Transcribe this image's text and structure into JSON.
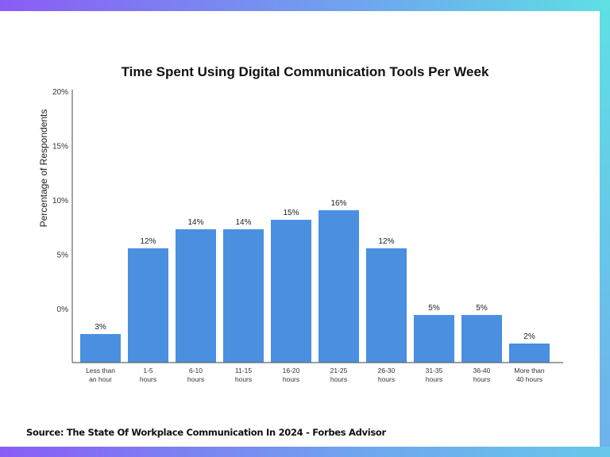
{
  "frame_colors": {
    "gradient_start": "#8a5cf6",
    "gradient_end": "#5ee0e4"
  },
  "source": "Source: The State Of Workplace Communication In 2024 - Forbes Advisor",
  "chart_data": {
    "type": "bar",
    "title": "Time Spent Using Digital Communication Tools Per Week",
    "ylabel": "Percentage of Respondents",
    "xlabel": "",
    "y_tick_labels": [
      "20%",
      "15%",
      "10%",
      "5%",
      "0%"
    ],
    "categories": [
      [
        "Less than",
        "an hour"
      ],
      [
        "1-5",
        "hours"
      ],
      [
        "6-10",
        "hours"
      ],
      [
        "11-15",
        "hours"
      ],
      [
        "16-20",
        "hours"
      ],
      [
        "21-25",
        "hours"
      ],
      [
        "26-30",
        "hours"
      ],
      [
        "31-35",
        "hours"
      ],
      [
        "36-40",
        "hours"
      ],
      [
        "More than",
        "40 hours"
      ]
    ],
    "values": [
      3,
      12,
      14,
      14,
      15,
      16,
      12,
      5,
      5,
      2
    ],
    "data_labels": [
      "3%",
      "12%",
      "14%",
      "14%",
      "15%",
      "16%",
      "12%",
      "5%",
      "5%",
      "2%"
    ],
    "bar_color": "#4a8fe0",
    "grid": false,
    "legend": "none"
  }
}
